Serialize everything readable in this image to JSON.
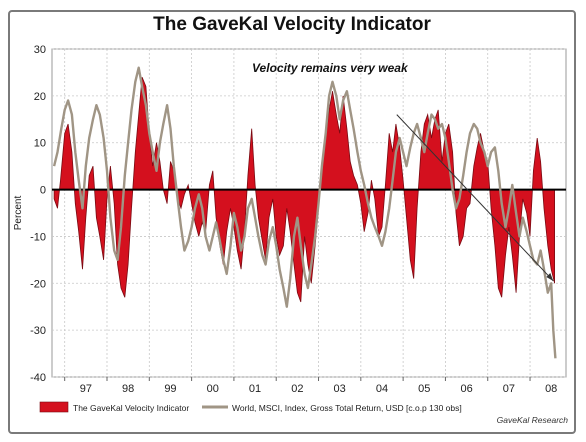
{
  "chart_data": {
    "type": "area",
    "title": "The GaveKal Velocity Indicator",
    "ylabel": "Percent",
    "xlabel": "",
    "ylim": [
      -40,
      30
    ],
    "yticks": [
      30,
      20,
      10,
      0,
      -10,
      -20,
      -30,
      -40
    ],
    "x_year_labels": [
      "97",
      "98",
      "99",
      "00",
      "01",
      "02",
      "03",
      "04",
      "05",
      "06",
      "07",
      "08"
    ],
    "xlim": [
      1996.7,
      2008.85
    ],
    "grid": true,
    "legend_position": "bottom",
    "colors": {
      "area": "#d4101e",
      "area_edge": "#7a0a12",
      "line": "#a09585",
      "zero_line": "#000000"
    },
    "annotation": {
      "text": "Velocity remains very weak",
      "arrow_from": [
        2004.85,
        16
      ],
      "arrow_to": [
        2008.55,
        -19.5
      ]
    },
    "source": "GaveKal Research",
    "series": [
      {
        "name": "The GaveKal Velocity Indicator",
        "kind": "area",
        "points": [
          [
            1996.75,
            -2
          ],
          [
            1996.83,
            -4
          ],
          [
            1996.9,
            2
          ],
          [
            1997.0,
            12
          ],
          [
            1997.08,
            14
          ],
          [
            1997.17,
            8
          ],
          [
            1997.25,
            -3
          ],
          [
            1997.33,
            -9
          ],
          [
            1997.42,
            -17
          ],
          [
            1997.5,
            -6
          ],
          [
            1997.58,
            3
          ],
          [
            1997.67,
            5
          ],
          [
            1997.75,
            -6
          ],
          [
            1997.83,
            -10
          ],
          [
            1997.92,
            -15
          ],
          [
            1998.0,
            -2
          ],
          [
            1998.08,
            5
          ],
          [
            1998.17,
            -3
          ],
          [
            1998.25,
            -16
          ],
          [
            1998.33,
            -21
          ],
          [
            1998.42,
            -23
          ],
          [
            1998.5,
            -16
          ],
          [
            1998.58,
            -4
          ],
          [
            1998.67,
            8
          ],
          [
            1998.75,
            16
          ],
          [
            1998.83,
            24
          ],
          [
            1998.92,
            22
          ],
          [
            1999.0,
            12
          ],
          [
            1999.08,
            5
          ],
          [
            1999.17,
            10
          ],
          [
            1999.25,
            6
          ],
          [
            1999.33,
            0
          ],
          [
            1999.42,
            -3
          ],
          [
            1999.5,
            6
          ],
          [
            1999.58,
            4
          ],
          [
            1999.67,
            -2
          ],
          [
            1999.75,
            -4
          ],
          [
            1999.83,
            -1
          ],
          [
            1999.92,
            1
          ],
          [
            2000.0,
            -3
          ],
          [
            2000.08,
            -7
          ],
          [
            2000.17,
            -10
          ],
          [
            2000.25,
            -7
          ],
          [
            2000.33,
            -9
          ],
          [
            2000.42,
            1
          ],
          [
            2000.5,
            4
          ],
          [
            2000.58,
            -6
          ],
          [
            2000.67,
            -12
          ],
          [
            2000.75,
            -16
          ],
          [
            2000.83,
            -9
          ],
          [
            2000.92,
            -4
          ],
          [
            2001.0,
            -8
          ],
          [
            2001.08,
            -13
          ],
          [
            2001.17,
            -17
          ],
          [
            2001.25,
            -9
          ],
          [
            2001.33,
            3
          ],
          [
            2001.42,
            13
          ],
          [
            2001.5,
            1
          ],
          [
            2001.58,
            -6
          ],
          [
            2001.67,
            -11
          ],
          [
            2001.75,
            -15
          ],
          [
            2001.83,
            -6
          ],
          [
            2001.92,
            -2
          ],
          [
            2002.0,
            -10
          ],
          [
            2002.08,
            -14
          ],
          [
            2002.17,
            -12
          ],
          [
            2002.25,
            -4
          ],
          [
            2002.33,
            -9
          ],
          [
            2002.42,
            -16
          ],
          [
            2002.5,
            -22
          ],
          [
            2002.58,
            -24
          ],
          [
            2002.67,
            -10
          ],
          [
            2002.75,
            -16
          ],
          [
            2002.83,
            -20
          ],
          [
            2002.92,
            -12
          ],
          [
            2003.0,
            -4
          ],
          [
            2003.08,
            6
          ],
          [
            2003.17,
            11
          ],
          [
            2003.25,
            17
          ],
          [
            2003.33,
            21
          ],
          [
            2003.42,
            16
          ],
          [
            2003.5,
            12
          ],
          [
            2003.58,
            20
          ],
          [
            2003.67,
            13
          ],
          [
            2003.75,
            6
          ],
          [
            2003.83,
            3
          ],
          [
            2003.92,
            1
          ],
          [
            2004.0,
            -3
          ],
          [
            2004.08,
            -9
          ],
          [
            2004.17,
            -5
          ],
          [
            2004.25,
            2
          ],
          [
            2004.33,
            -2
          ],
          [
            2004.42,
            -10
          ],
          [
            2004.5,
            -8
          ],
          [
            2004.58,
            1
          ],
          [
            2004.67,
            12
          ],
          [
            2004.75,
            8
          ],
          [
            2004.83,
            14
          ],
          [
            2004.92,
            9
          ],
          [
            2005.0,
            2
          ],
          [
            2005.08,
            -6
          ],
          [
            2005.17,
            -15
          ],
          [
            2005.25,
            -19
          ],
          [
            2005.33,
            -4
          ],
          [
            2005.42,
            8
          ],
          [
            2005.5,
            14
          ],
          [
            2005.58,
            16
          ],
          [
            2005.67,
            11
          ],
          [
            2005.75,
            15
          ],
          [
            2005.83,
            17
          ],
          [
            2005.92,
            6
          ],
          [
            2006.0,
            12
          ],
          [
            2006.08,
            14
          ],
          [
            2006.17,
            8
          ],
          [
            2006.25,
            -5
          ],
          [
            2006.33,
            -12
          ],
          [
            2006.42,
            -10
          ],
          [
            2006.5,
            -4
          ],
          [
            2006.58,
            -3
          ],
          [
            2006.67,
            5
          ],
          [
            2006.75,
            9
          ],
          [
            2006.83,
            12
          ],
          [
            2006.92,
            8
          ],
          [
            2007.0,
            6
          ],
          [
            2007.08,
            -4
          ],
          [
            2007.17,
            -12
          ],
          [
            2007.25,
            -21
          ],
          [
            2007.33,
            -23
          ],
          [
            2007.42,
            -14
          ],
          [
            2007.5,
            -8
          ],
          [
            2007.58,
            -14
          ],
          [
            2007.67,
            -22
          ],
          [
            2007.75,
            -10
          ],
          [
            2007.83,
            -2
          ],
          [
            2007.92,
            -5
          ],
          [
            2008.0,
            -10
          ],
          [
            2008.08,
            4
          ],
          [
            2008.17,
            11
          ],
          [
            2008.25,
            6
          ],
          [
            2008.33,
            -4
          ],
          [
            2008.42,
            -12
          ],
          [
            2008.5,
            -17
          ],
          [
            2008.58,
            -20
          ]
        ]
      },
      {
        "name": "World, MSCI, Index, Gross Total Return, USD [c.o.p 130 obs]",
        "kind": "line",
        "points": [
          [
            1996.75,
            5
          ],
          [
            1996.83,
            8
          ],
          [
            1996.92,
            13
          ],
          [
            1997.0,
            17
          ],
          [
            1997.08,
            19
          ],
          [
            1997.17,
            16
          ],
          [
            1997.25,
            8
          ],
          [
            1997.33,
            2
          ],
          [
            1997.42,
            -4
          ],
          [
            1997.5,
            5
          ],
          [
            1997.58,
            11
          ],
          [
            1997.67,
            15
          ],
          [
            1997.75,
            18
          ],
          [
            1997.83,
            16
          ],
          [
            1997.92,
            11
          ],
          [
            1998.0,
            4
          ],
          [
            1998.08,
            -6
          ],
          [
            1998.17,
            -13
          ],
          [
            1998.25,
            -15
          ],
          [
            1998.33,
            -8
          ],
          [
            1998.42,
            3
          ],
          [
            1998.5,
            10
          ],
          [
            1998.58,
            17
          ],
          [
            1998.67,
            23
          ],
          [
            1998.75,
            26
          ],
          [
            1998.83,
            22
          ],
          [
            1998.92,
            18
          ],
          [
            1999.0,
            12
          ],
          [
            1999.08,
            8
          ],
          [
            1999.17,
            4
          ],
          [
            1999.25,
            10
          ],
          [
            1999.33,
            14
          ],
          [
            1999.42,
            18
          ],
          [
            1999.5,
            13
          ],
          [
            1999.58,
            5
          ],
          [
            1999.67,
            -2
          ],
          [
            1999.75,
            -8
          ],
          [
            1999.83,
            -13
          ],
          [
            1999.92,
            -11
          ],
          [
            2000.0,
            -8
          ],
          [
            2000.08,
            -4
          ],
          [
            2000.17,
            -1
          ],
          [
            2000.25,
            -4
          ],
          [
            2000.33,
            -10
          ],
          [
            2000.42,
            -13
          ],
          [
            2000.5,
            -10
          ],
          [
            2000.58,
            -7
          ],
          [
            2000.67,
            -11
          ],
          [
            2000.75,
            -15
          ],
          [
            2000.83,
            -18
          ],
          [
            2000.92,
            -12
          ],
          [
            2001.0,
            -5
          ],
          [
            2001.08,
            -8
          ],
          [
            2001.17,
            -13
          ],
          [
            2001.25,
            -10
          ],
          [
            2001.33,
            -4
          ],
          [
            2001.42,
            -2
          ],
          [
            2001.5,
            -6
          ],
          [
            2001.58,
            -10
          ],
          [
            2001.67,
            -14
          ],
          [
            2001.75,
            -16
          ],
          [
            2001.83,
            -11
          ],
          [
            2001.92,
            -8
          ],
          [
            2002.0,
            -12
          ],
          [
            2002.08,
            -17
          ],
          [
            2002.17,
            -21
          ],
          [
            2002.25,
            -25
          ],
          [
            2002.33,
            -19
          ],
          [
            2002.42,
            -10
          ],
          [
            2002.5,
            -6
          ],
          [
            2002.58,
            -12
          ],
          [
            2002.67,
            -18
          ],
          [
            2002.75,
            -21
          ],
          [
            2002.83,
            -16
          ],
          [
            2002.92,
            -10
          ],
          [
            2003.0,
            -3
          ],
          [
            2003.08,
            5
          ],
          [
            2003.17,
            12
          ],
          [
            2003.25,
            20
          ],
          [
            2003.33,
            23
          ],
          [
            2003.42,
            20
          ],
          [
            2003.5,
            15
          ],
          [
            2003.58,
            19
          ],
          [
            2003.67,
            21
          ],
          [
            2003.75,
            17
          ],
          [
            2003.83,
            13
          ],
          [
            2003.92,
            8
          ],
          [
            2004.0,
            4
          ],
          [
            2004.08,
            1
          ],
          [
            2004.17,
            -3
          ],
          [
            2004.25,
            -6
          ],
          [
            2004.33,
            -8
          ],
          [
            2004.42,
            -10
          ],
          [
            2004.5,
            -12
          ],
          [
            2004.58,
            -9
          ],
          [
            2004.67,
            -4
          ],
          [
            2004.75,
            2
          ],
          [
            2004.83,
            8
          ],
          [
            2004.92,
            11
          ],
          [
            2005.0,
            8
          ],
          [
            2005.08,
            5
          ],
          [
            2005.17,
            9
          ],
          [
            2005.25,
            12
          ],
          [
            2005.33,
            14
          ],
          [
            2005.42,
            11
          ],
          [
            2005.5,
            8
          ],
          [
            2005.58,
            12
          ],
          [
            2005.67,
            16
          ],
          [
            2005.75,
            15
          ],
          [
            2005.83,
            13
          ],
          [
            2005.92,
            14
          ],
          [
            2006.0,
            11
          ],
          [
            2006.08,
            6
          ],
          [
            2006.17,
            0
          ],
          [
            2006.25,
            -4
          ],
          [
            2006.33,
            -2
          ],
          [
            2006.42,
            3
          ],
          [
            2006.5,
            8
          ],
          [
            2006.58,
            12
          ],
          [
            2006.67,
            14
          ],
          [
            2006.75,
            13
          ],
          [
            2006.83,
            10
          ],
          [
            2006.92,
            8
          ],
          [
            2007.0,
            5
          ],
          [
            2007.08,
            8
          ],
          [
            2007.17,
            9
          ],
          [
            2007.25,
            4
          ],
          [
            2007.33,
            -3
          ],
          [
            2007.42,
            -8
          ],
          [
            2007.5,
            -4
          ],
          [
            2007.58,
            1
          ],
          [
            2007.67,
            -5
          ],
          [
            2007.75,
            -10
          ],
          [
            2007.83,
            -6
          ],
          [
            2007.92,
            -9
          ],
          [
            2008.0,
            -12
          ],
          [
            2008.08,
            -15
          ],
          [
            2008.17,
            -16
          ],
          [
            2008.25,
            -13
          ],
          [
            2008.33,
            -17
          ],
          [
            2008.42,
            -22
          ],
          [
            2008.5,
            -20
          ],
          [
            2008.55,
            -30
          ],
          [
            2008.6,
            -36
          ]
        ]
      }
    ]
  }
}
